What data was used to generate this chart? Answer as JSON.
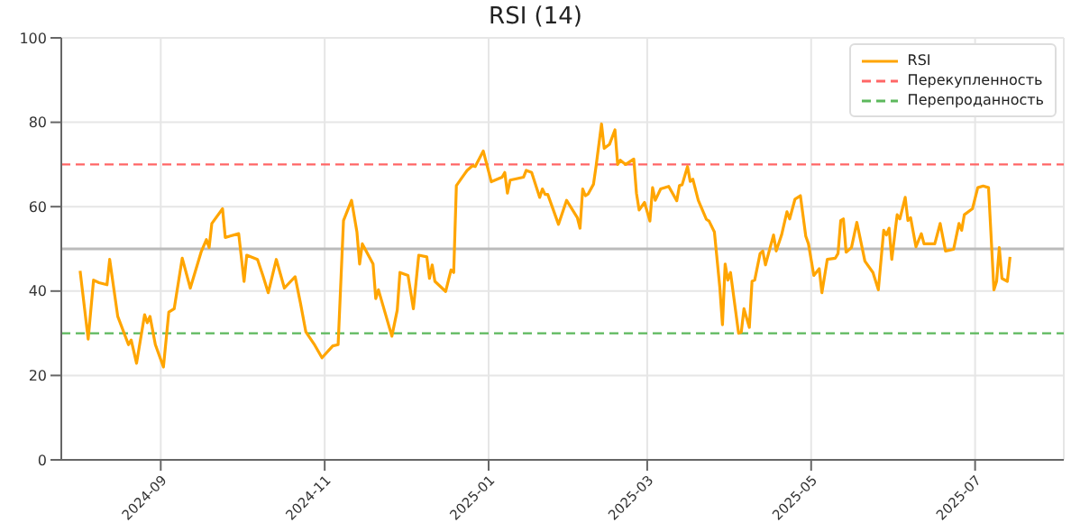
{
  "chart_data": {
    "type": "line",
    "title": "RSI (14)",
    "x": [
      "2024-08-02",
      "2024-08-05",
      "2024-08-07",
      "2024-08-09",
      "2024-08-12",
      "2024-08-13",
      "2024-08-16",
      "2024-08-20",
      "2024-08-21",
      "2024-08-23",
      "2024-08-26",
      "2024-08-27",
      "2024-08-28",
      "2024-08-30",
      "2024-09-02",
      "2024-09-04",
      "2024-09-06",
      "2024-09-09",
      "2024-09-12",
      "2024-09-16",
      "2024-09-18",
      "2024-09-19",
      "2024-09-20",
      "2024-09-24",
      "2024-09-25",
      "2024-09-30",
      "2024-10-02",
      "2024-10-03",
      "2024-10-07",
      "2024-10-09",
      "2024-10-11",
      "2024-10-14",
      "2024-10-17",
      "2024-10-21",
      "2024-10-23",
      "2024-10-25",
      "2024-10-28",
      "2024-10-31",
      "2024-11-04",
      "2024-11-06",
      "2024-11-08",
      "2024-11-11",
      "2024-11-13",
      "2024-11-14",
      "2024-11-15",
      "2024-11-19",
      "2024-11-20",
      "2024-11-21",
      "2024-11-26",
      "2024-11-28",
      "2024-11-29",
      "2024-12-02",
      "2024-12-04",
      "2024-12-06",
      "2024-12-09",
      "2024-12-10",
      "2024-12-11",
      "2024-12-12",
      "2024-12-16",
      "2024-12-18",
      "2024-12-19",
      "2024-12-20",
      "2024-12-23",
      "2024-12-24",
      "2024-12-26",
      "2024-12-27",
      "2024-12-30",
      "2025-01-02",
      "2025-01-06",
      "2025-01-07",
      "2025-01-08",
      "2025-01-09",
      "2025-01-14",
      "2025-01-15",
      "2025-01-17",
      "2025-01-20",
      "2025-01-21",
      "2025-01-22",
      "2025-01-23",
      "2025-01-27",
      "2025-01-30",
      "2025-02-03",
      "2025-02-04",
      "2025-02-05",
      "2025-02-06",
      "2025-02-07",
      "2025-02-09",
      "2025-02-10",
      "2025-02-12",
      "2025-02-13",
      "2025-02-15",
      "2025-02-17",
      "2025-02-18",
      "2025-02-19",
      "2025-02-21",
      "2025-02-24",
      "2025-02-25",
      "2025-02-26",
      "2025-02-28",
      "2025-03-02",
      "2025-03-03",
      "2025-03-04",
      "2025-03-06",
      "2025-03-09",
      "2025-03-12",
      "2025-03-13",
      "2025-03-14",
      "2025-03-16",
      "2025-03-17",
      "2025-03-18",
      "2025-03-20",
      "2025-03-23",
      "2025-03-24",
      "2025-03-26",
      "2025-03-28",
      "2025-03-29",
      "2025-03-30",
      "2025-03-31",
      "2025-04-01",
      "2025-04-04",
      "2025-04-05",
      "2025-04-06",
      "2025-04-08",
      "2025-04-09",
      "2025-04-10",
      "2025-04-12",
      "2025-04-13",
      "2025-04-14",
      "2025-04-17",
      "2025-04-18",
      "2025-04-20",
      "2025-04-22",
      "2025-04-23",
      "2025-04-25",
      "2025-04-27",
      "2025-04-29",
      "2025-04-30",
      "2025-05-02",
      "2025-05-04",
      "2025-05-05",
      "2025-05-07",
      "2025-05-10",
      "2025-05-11",
      "2025-05-12",
      "2025-05-13",
      "2025-05-14",
      "2025-05-16",
      "2025-05-18",
      "2025-05-21",
      "2025-05-24",
      "2025-05-26",
      "2025-05-28",
      "2025-05-29",
      "2025-05-30",
      "2025-05-31",
      "2025-06-02",
      "2025-06-03",
      "2025-06-05",
      "2025-06-06",
      "2025-06-07",
      "2025-06-09",
      "2025-06-11",
      "2025-06-12",
      "2025-06-16",
      "2025-06-18",
      "2025-06-20",
      "2025-06-23",
      "2025-06-25",
      "2025-06-26",
      "2025-06-27",
      "2025-06-30",
      "2025-07-02",
      "2025-07-04",
      "2025-07-06",
      "2025-07-08",
      "2025-07-09",
      "2025-07-10",
      "2025-07-11",
      "2025-07-13",
      "2025-07-14"
    ],
    "series": [
      {
        "name": "RSI",
        "color": "#ffa500",
        "values": [
          44.8,
          28.6,
          42.6,
          42,
          41.5,
          47.5,
          34,
          27.3,
          28.4,
          22.9,
          34.4,
          32.5,
          34,
          27.3,
          22,
          35,
          35.8,
          47.8,
          40.7,
          49.2,
          52.2,
          50.3,
          56,
          59.5,
          52.7,
          53.6,
          42.3,
          48.5,
          47.5,
          43.7,
          39.6,
          47.5,
          40.7,
          43.4,
          37.1,
          30.3,
          27.5,
          24.2,
          27,
          27.3,
          56.7,
          61.5,
          54,
          46.4,
          51.2,
          46.4,
          38.2,
          40.3,
          29.3,
          35.5,
          44.4,
          43.7,
          35.8,
          48.5,
          48.1,
          43,
          46.2,
          42.3,
          39.9,
          45,
          44.4,
          65,
          67.7,
          68.6,
          69.7,
          69.5,
          73.2,
          65.9,
          67,
          68.1,
          63.2,
          66.3,
          67,
          68.6,
          68.1,
          62.2,
          64.2,
          62.9,
          62.9,
          55.8,
          61.5,
          57.4,
          54.9,
          64.2,
          62.6,
          63,
          65.3,
          69.7,
          79.6,
          73.8,
          74.8,
          78.2,
          70,
          71,
          70,
          71.3,
          63.2,
          59.2,
          61,
          56.6,
          64.5,
          61.5,
          64.2,
          64.8,
          61.4,
          65,
          65.2,
          69.5,
          66,
          66.5,
          61.5,
          57,
          56.6,
          54,
          41,
          32,
          46.4,
          42.6,
          44.4,
          30,
          30.3,
          35.8,
          31.4,
          42.3,
          42.6,
          48.9,
          49.5,
          46.2,
          53.3,
          49.5,
          53.3,
          58.8,
          57.1,
          61.8,
          62.6,
          53,
          51.2,
          43.7,
          45.3,
          39.6,
          47.5,
          47.8,
          48.9,
          56.7,
          57.1,
          49.2,
          50.3,
          56.3,
          47.1,
          44.4,
          40.3,
          54.4,
          53.3,
          54.9,
          47.5,
          58.1,
          57.1,
          62.2,
          56.7,
          57.4,
          50.5,
          53.6,
          51.2,
          51.2,
          56,
          49.5,
          49.9,
          56,
          54.4,
          58.1,
          59.5,
          64.5,
          64.9,
          64.5,
          40.3,
          42.3,
          50.3,
          43,
          42.3,
          48.1
        ]
      }
    ],
    "xlim": [
      "2024-07-26",
      "2025-08-03"
    ],
    "xticks": [
      "2024-09",
      "2024-11",
      "2025-01",
      "2025-03",
      "2025-05",
      "2025-07"
    ],
    "ylim": [
      0,
      100
    ],
    "yticks": [
      0,
      20,
      40,
      60,
      80,
      100
    ],
    "ref_lines": [
      {
        "axis": "y",
        "value": 70,
        "label": "Перекупленность",
        "color": "#ff6666",
        "line_style": "dashed"
      },
      {
        "axis": "y",
        "value": 30,
        "label": "Перепроданность",
        "color": "#5cb85c",
        "line_style": "dashed"
      },
      {
        "axis": "y",
        "value": 50,
        "color": "#bbbbbb",
        "line_style": "solid"
      }
    ],
    "grid": true,
    "legend": "top right",
    "marker": "none",
    "line_style": "solid"
  }
}
